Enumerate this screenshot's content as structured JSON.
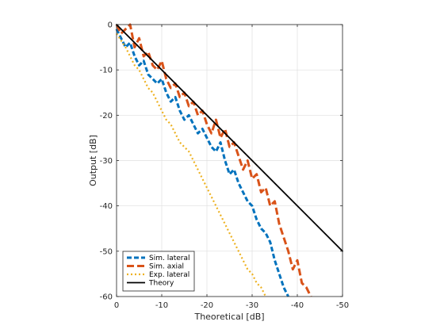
{
  "chart_data": {
    "type": "line",
    "title": "",
    "xlabel": "Theoretical [dB]",
    "ylabel": "Output [dB]",
    "xlim": [
      0,
      -50
    ],
    "ylim": [
      -60,
      0
    ],
    "x_ticks": [
      0,
      -10,
      -20,
      -30,
      -40,
      -50
    ],
    "y_ticks": [
      0,
      -10,
      -20,
      -30,
      -40,
      -50,
      -60
    ],
    "x_tick_labels": [
      "0",
      "-10",
      "-20",
      "-30",
      "-40",
      "-50"
    ],
    "y_tick_labels": [
      "0",
      "-10",
      "-20",
      "-30",
      "-40",
      "-50",
      "-60"
    ],
    "grid": true,
    "legend_position": "bottom-left",
    "series": [
      {
        "name": "Sim. lateral",
        "color": "#0072BD",
        "style": "dashed",
        "points": [
          [
            0,
            -1
          ],
          [
            -1,
            -3
          ],
          [
            -2,
            -5
          ],
          [
            -3,
            -4
          ],
          [
            -4,
            -7
          ],
          [
            -5,
            -9
          ],
          [
            -6,
            -8
          ],
          [
            -7,
            -11
          ],
          [
            -8,
            -12
          ],
          [
            -9,
            -13
          ],
          [
            -10,
            -12
          ],
          [
            -11,
            -15
          ],
          [
            -12,
            -17
          ],
          [
            -13,
            -16
          ],
          [
            -14,
            -19
          ],
          [
            -15,
            -21
          ],
          [
            -16,
            -20
          ],
          [
            -17,
            -22
          ],
          [
            -18,
            -24
          ],
          [
            -19,
            -23
          ],
          [
            -20,
            -25
          ],
          [
            -21,
            -27
          ],
          [
            -22,
            -28
          ],
          [
            -23,
            -26
          ],
          [
            -24,
            -30
          ],
          [
            -25,
            -33
          ],
          [
            -26,
            -32
          ],
          [
            -27,
            -35
          ],
          [
            -28,
            -37
          ],
          [
            -29,
            -39
          ],
          [
            -30,
            -40
          ],
          [
            -31,
            -43
          ],
          [
            -32,
            -45
          ],
          [
            -33,
            -46
          ],
          [
            -34,
            -48
          ],
          [
            -35,
            -52
          ],
          [
            -36,
            -55
          ],
          [
            -37,
            -58
          ],
          [
            -38,
            -60
          ]
        ]
      },
      {
        "name": "Sim. axial",
        "color": "#D95319",
        "style": "long-dashed",
        "points": [
          [
            0,
            0
          ],
          [
            -1,
            -2
          ],
          [
            -2,
            -1
          ],
          [
            -3,
            0
          ],
          [
            -4,
            -5
          ],
          [
            -5,
            -3
          ],
          [
            -6,
            -7
          ],
          [
            -7,
            -6
          ],
          [
            -8,
            -9
          ],
          [
            -9,
            -10
          ],
          [
            -10,
            -8
          ],
          [
            -11,
            -12
          ],
          [
            -12,
            -14
          ],
          [
            -13,
            -13
          ],
          [
            -14,
            -16
          ],
          [
            -15,
            -15
          ],
          [
            -16,
            -18
          ],
          [
            -17,
            -17
          ],
          [
            -18,
            -20
          ],
          [
            -19,
            -19
          ],
          [
            -20,
            -22
          ],
          [
            -21,
            -24
          ],
          [
            -22,
            -21
          ],
          [
            -23,
            -25
          ],
          [
            -24,
            -23
          ],
          [
            -25,
            -27
          ],
          [
            -26,
            -26
          ],
          [
            -27,
            -29
          ],
          [
            -28,
            -32
          ],
          [
            -29,
            -30
          ],
          [
            -30,
            -34
          ],
          [
            -31,
            -33
          ],
          [
            -32,
            -37
          ],
          [
            -33,
            -36
          ],
          [
            -34,
            -40
          ],
          [
            -35,
            -39
          ],
          [
            -36,
            -44
          ],
          [
            -37,
            -47
          ],
          [
            -38,
            -50
          ],
          [
            -39,
            -54
          ],
          [
            -40,
            -52
          ],
          [
            -41,
            -57
          ],
          [
            -42,
            -58
          ],
          [
            -43,
            -60
          ]
        ]
      },
      {
        "name": "Exp. lateral",
        "color": "#EDB120",
        "style": "dotted",
        "points": [
          [
            0,
            -2
          ],
          [
            -2,
            -5
          ],
          [
            -3,
            -7
          ],
          [
            -4,
            -9
          ],
          [
            -5,
            -10
          ],
          [
            -6,
            -12
          ],
          [
            -7,
            -14
          ],
          [
            -8,
            -15
          ],
          [
            -9,
            -17
          ],
          [
            -10,
            -19
          ],
          [
            -11,
            -21
          ],
          [
            -12,
            -22
          ],
          [
            -13,
            -24
          ],
          [
            -14,
            -26
          ],
          [
            -15,
            -27
          ],
          [
            -16,
            -28
          ],
          [
            -17,
            -30
          ],
          [
            -18,
            -32
          ],
          [
            -19,
            -34
          ],
          [
            -20,
            -36
          ],
          [
            -21,
            -38
          ],
          [
            -22,
            -40
          ],
          [
            -23,
            -42
          ],
          [
            -24,
            -44
          ],
          [
            -25,
            -46
          ],
          [
            -26,
            -48
          ],
          [
            -27,
            -50
          ],
          [
            -28,
            -52
          ],
          [
            -29,
            -54
          ],
          [
            -30,
            -55
          ],
          [
            -31,
            -57
          ],
          [
            -32,
            -58
          ],
          [
            -33,
            -60
          ]
        ]
      },
      {
        "name": "Theory",
        "color": "#000000",
        "style": "solid",
        "points": [
          [
            0,
            0
          ],
          [
            -50,
            -50
          ]
        ]
      }
    ]
  }
}
